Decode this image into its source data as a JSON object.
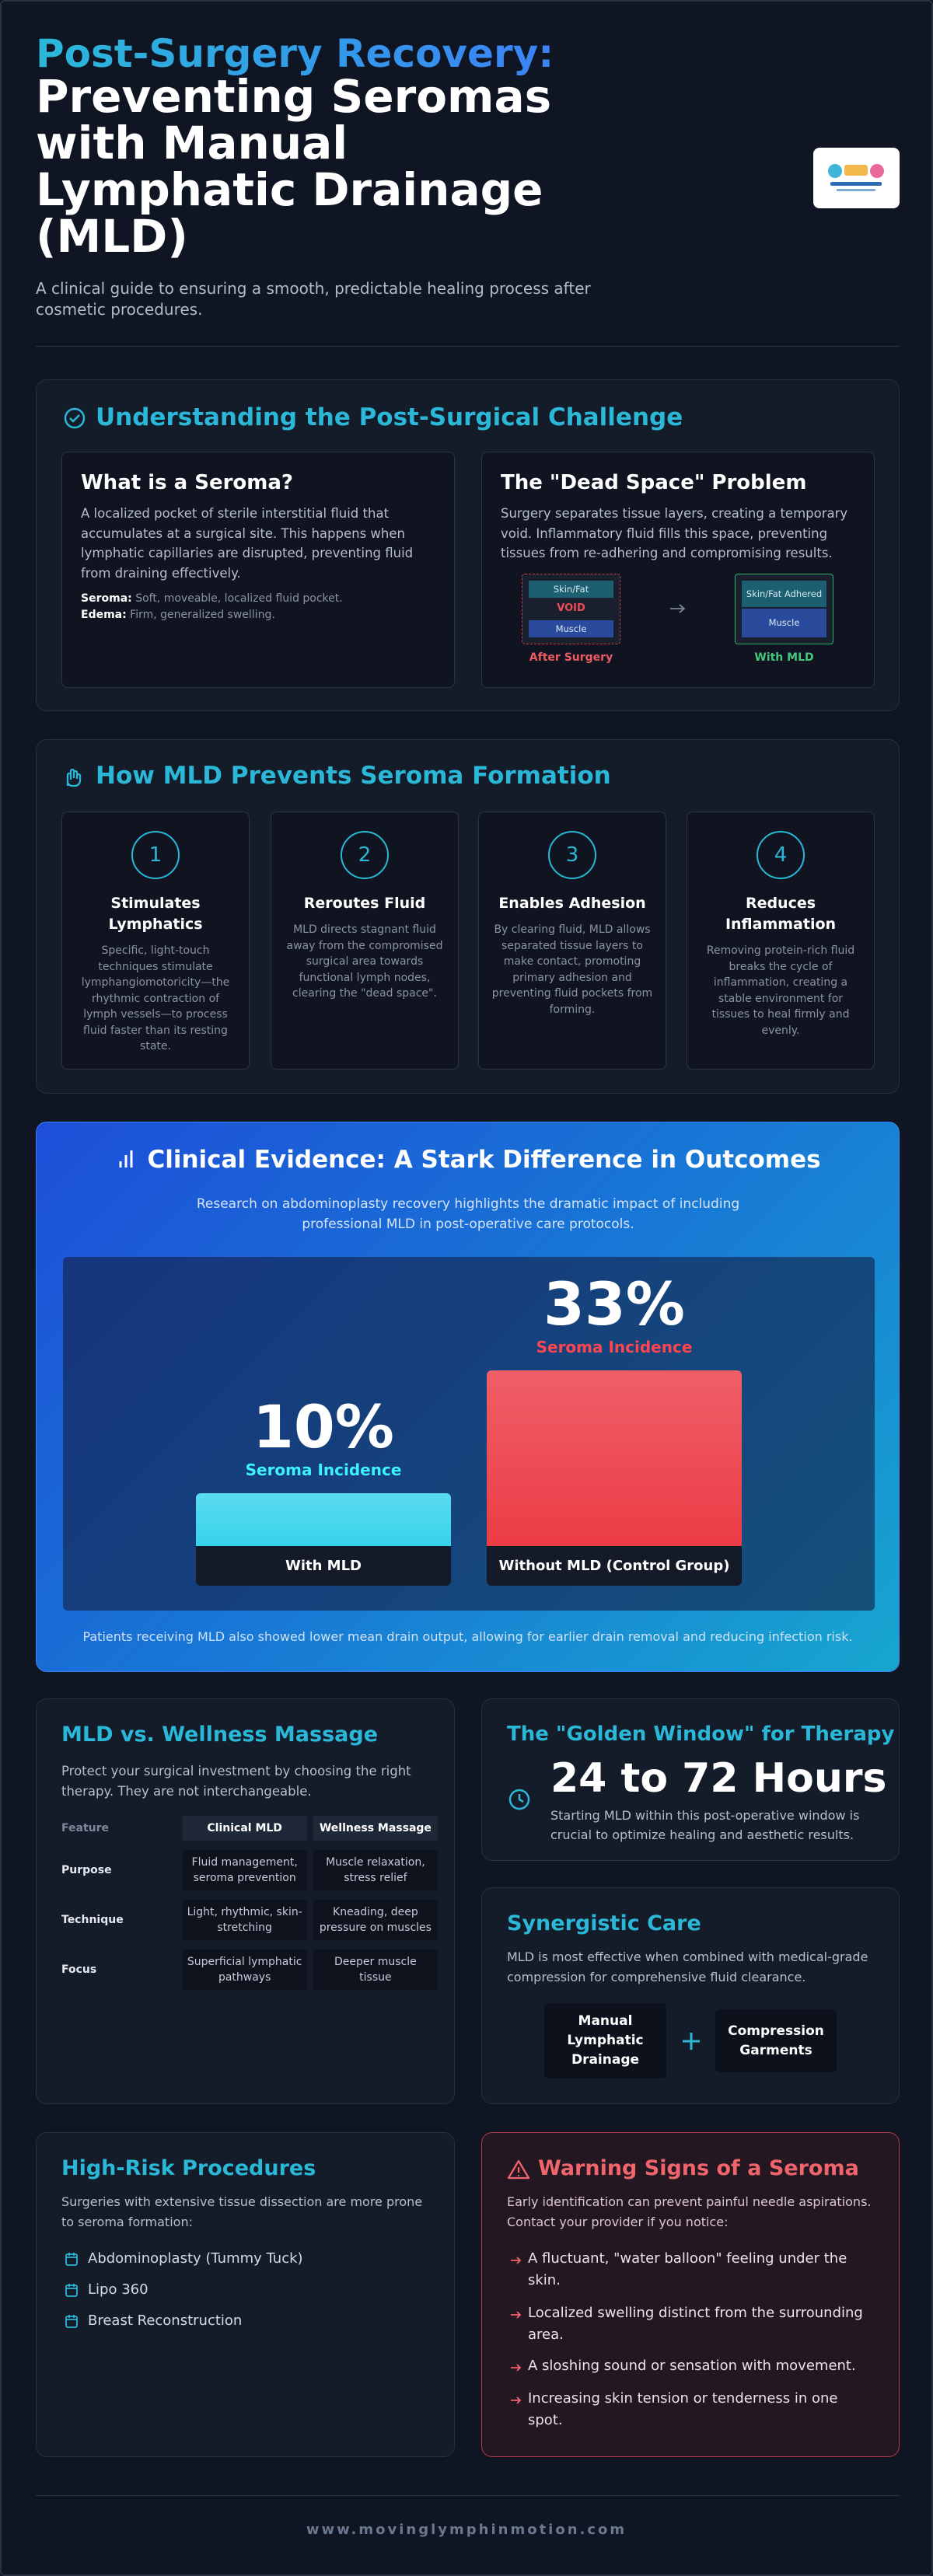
{
  "header": {
    "kicker": "Post-Surgery Recovery:",
    "title": "Preventing Seromas with Manual Lymphatic Drainage (MLD)",
    "subtitle": "A clinical guide to ensuring a smooth, predictable healing process after cosmetic procedures."
  },
  "challenge": {
    "heading": "Understanding the Post-Surgical Challenge",
    "seroma": {
      "title": "What is a Seroma?",
      "text": "A localized pocket of sterile interstitial fluid that accumulates at a surgical site. This happens when lymphatic capillaries are disrupted, preventing fluid from draining effectively.",
      "terms": [
        {
          "term": "Seroma:",
          "definition": "Soft, moveable, localized fluid pocket."
        },
        {
          "term": "Edema:",
          "definition": "Firm, generalized swelling."
        }
      ]
    },
    "dead_space": {
      "title": "The \"Dead Space\" Problem",
      "text": "Surgery separates tissue layers, creating a temporary void. Inflammatory fluid fills this space, preventing tissues from re-adhering and compromising results.",
      "before": {
        "layers": [
          "Skin/Fat",
          "VOID",
          "Muscle"
        ],
        "caption": "After Surgery"
      },
      "after": {
        "layers": [
          "Skin/Fat Adhered",
          "Muscle"
        ],
        "caption": "With MLD"
      }
    }
  },
  "mechanism": {
    "heading": "How MLD Prevents Seroma Formation",
    "steps": [
      {
        "number": "1",
        "title": "Stimulates Lymphatics",
        "text": "Specific, light-touch techniques stimulate lymphangiomotoricity—the rhythmic contraction of lymph vessels—to process fluid faster than its resting state."
      },
      {
        "number": "2",
        "title": "Reroutes Fluid",
        "text": "MLD directs stagnant fluid away from the compromised surgical area towards functional lymph nodes, clearing the \"dead space\"."
      },
      {
        "number": "3",
        "title": "Enables Adhesion",
        "text": "By clearing fluid, MLD allows separated tissue layers to make contact, promoting primary adhesion and preventing fluid pockets from forming."
      },
      {
        "number": "4",
        "title": "Reduces Inflammation",
        "text": "Removing protein-rich fluid breaks the cycle of inflammation, creating a stable environment for tissues to heal firmly and evenly."
      }
    ]
  },
  "evidence": {
    "heading": "Clinical Evidence: A Stark Difference in Outcomes",
    "text": "Research on abdominoplasty recovery highlights the dramatic impact of including professional MLD in post-operative care protocols.",
    "chart": {
      "type": "bar",
      "categories": [
        "With MLD",
        "Without MLD (Control Group)"
      ],
      "values": [
        10,
        33
      ],
      "value_labels": [
        "10%",
        "33%"
      ],
      "value_caption": "Seroma Incidence",
      "colors": [
        "#36d3ec",
        "#ec3c46"
      ]
    },
    "note": "Patients receiving MLD also showed lower mean drain output, allowing for earlier drain removal and reducing infection risk."
  },
  "comparison": {
    "heading": "MLD vs. Wellness Massage",
    "text": "Protect your surgical investment by choosing the right therapy. They are not interchangeable.",
    "table": {
      "columns": [
        "Feature",
        "Clinical MLD",
        "Wellness Massage"
      ],
      "rows": [
        [
          "Purpose",
          "Fluid management, seroma prevention",
          "Muscle relaxation, stress relief"
        ],
        [
          "Technique",
          "Light, rhythmic, skin-stretching",
          "Kneading, deep pressure on muscles"
        ],
        [
          "Focus",
          "Superficial lymphatic pathways",
          "Deeper muscle tissue"
        ]
      ]
    }
  },
  "window": {
    "heading": "The \"Golden Window\" for Therapy",
    "highlight": "24 to 72 Hours",
    "text": "Starting MLD within this post-operative window is crucial to optimize healing and aesthetic results."
  },
  "synergy": {
    "heading": "Synergistic Care",
    "text": "MLD is most effective when combined with medical-grade compression for comprehensive fluid clearance.",
    "items": [
      "Manual Lymphatic Drainage",
      "Compression Garments"
    ]
  },
  "procedures": {
    "heading": "High-Risk Procedures",
    "text": "Surgeries with extensive tissue dissection are more prone to seroma formation:",
    "items": [
      "Abdominoplasty (Tummy Tuck)",
      "Lipo 360",
      "Breast Reconstruction"
    ]
  },
  "warnings": {
    "heading": "Warning Signs of a Seroma",
    "text": "Early identification can prevent painful needle aspirations. Contact your provider if you notice:",
    "items": [
      "A fluctuant, \"water balloon\" feeling under the skin.",
      "Localized swelling distinct from the surrounding area.",
      "A sloshing sound or sensation with movement.",
      "Increasing skin tension or tenderness in one spot."
    ]
  },
  "footer": {
    "url": "www.movinglymphinmotion.com"
  }
}
